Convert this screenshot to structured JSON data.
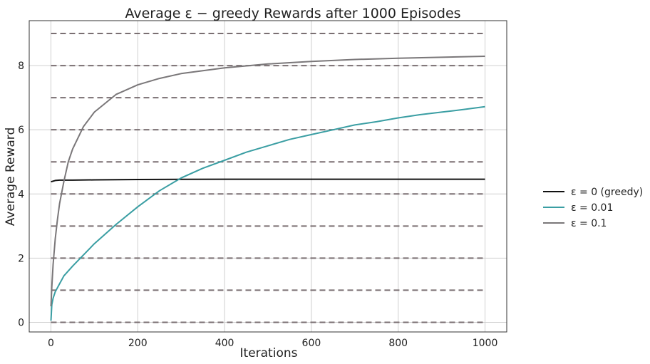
{
  "chart_data": {
    "type": "line",
    "title": "Average ε − greedy Rewards after 1000 Episodes",
    "xlabel": "Iterations",
    "ylabel": "Average Reward",
    "xlim": [
      -50,
      1050
    ],
    "ylim": [
      -0.3,
      9.4
    ],
    "xticks": [
      0,
      200,
      400,
      600,
      800,
      1000
    ],
    "yticks": [
      0,
      2,
      4,
      6,
      8
    ],
    "grid": true,
    "legend_position": "right, outside plot",
    "reference_lines": {
      "style": "dashed",
      "color": "#7a6f72",
      "y": [
        0,
        1,
        2,
        3,
        4,
        5,
        6,
        7,
        8,
        9
      ]
    },
    "series": [
      {
        "name": "ε = 0 (greedy)",
        "color": "#111111",
        "x": [
          0,
          5,
          10,
          20,
          30,
          50,
          100,
          200,
          400,
          600,
          800,
          1000
        ],
        "y": [
          4.38,
          4.4,
          4.42,
          4.43,
          4.43,
          4.43,
          4.44,
          4.45,
          4.46,
          4.46,
          4.46,
          4.46
        ]
      },
      {
        "name": "ε = 0.01",
        "color": "#3a9ea3",
        "x": [
          0,
          2,
          5,
          10,
          20,
          30,
          50,
          75,
          100,
          150,
          200,
          250,
          300,
          350,
          400,
          450,
          500,
          550,
          600,
          650,
          700,
          750,
          800,
          850,
          900,
          950,
          1000
        ],
        "y": [
          0.05,
          0.55,
          0.75,
          0.95,
          1.2,
          1.45,
          1.75,
          2.1,
          2.45,
          3.05,
          3.6,
          4.1,
          4.5,
          4.8,
          5.05,
          5.3,
          5.5,
          5.7,
          5.85,
          6.0,
          6.15,
          6.25,
          6.37,
          6.47,
          6.55,
          6.63,
          6.72
        ]
      },
      {
        "name": "ε = 0.1",
        "color": "#7a7779",
        "x": [
          0,
          2,
          5,
          10,
          15,
          20,
          30,
          40,
          50,
          75,
          100,
          150,
          200,
          250,
          300,
          400,
          500,
          600,
          700,
          800,
          900,
          1000
        ],
        "y": [
          0.5,
          1.1,
          1.8,
          2.6,
          3.2,
          3.7,
          4.4,
          5.0,
          5.4,
          6.1,
          6.55,
          7.1,
          7.4,
          7.6,
          7.75,
          7.93,
          8.05,
          8.13,
          8.19,
          8.23,
          8.26,
          8.29
        ]
      }
    ]
  }
}
